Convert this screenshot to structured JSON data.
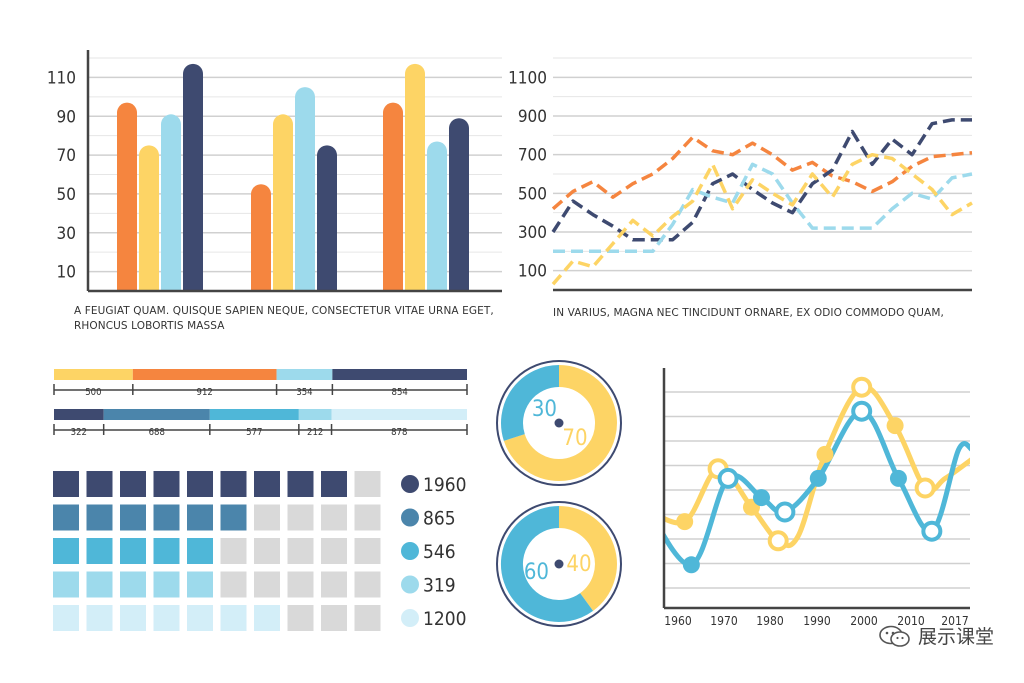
{
  "colors": {
    "orange": "#F5853F",
    "yellow": "#FDD465",
    "lightblue": "#9DDAEC",
    "navy": "#3E4A70",
    "teal": "#4FB7D8",
    "steel": "#4B85AB",
    "grid": "#D0D0D0",
    "axis": "#444444"
  },
  "bar_caption": "A FEUGIAT QUAM. QUISQUE SAPIEN NEQUE, CONSECTETUR VITAE URNA EGET, RHONCUS LOBORTIS MASSA",
  "line_caption": "IN VARIUS, MAGNA NEC TINCIDUNT ORNARE, EX ODIO COMMODO QUAM,",
  "watermark": "展示课堂",
  "chart_data": [
    {
      "type": "bar",
      "yticks": [
        "10",
        "30",
        "50",
        "70",
        "90",
        "110"
      ],
      "ylim": [
        0,
        120
      ],
      "groups": 3,
      "series": [
        {
          "color": "orange",
          "values": [
            97,
            55,
            97
          ]
        },
        {
          "color": "yellow",
          "values": [
            75,
            91,
            117
          ]
        },
        {
          "color": "lightblue",
          "values": [
            91,
            105,
            77
          ]
        },
        {
          "color": "navy",
          "values": [
            117,
            75,
            89
          ]
        }
      ]
    },
    {
      "type": "line",
      "style": "dashed",
      "yticks": [
        "100",
        "300",
        "500",
        "700",
        "900",
        "1100"
      ],
      "ylim": [
        0,
        1200
      ],
      "x": [
        0,
        1,
        2,
        3,
        4,
        5,
        6,
        7,
        8,
        9,
        10,
        11,
        12,
        13,
        14,
        15,
        16,
        17,
        18,
        19,
        20,
        21
      ],
      "series": [
        {
          "color": "orange",
          "values": [
            420,
            510,
            560,
            480,
            550,
            600,
            680,
            790,
            720,
            700,
            760,
            700,
            620,
            660,
            590,
            560,
            510,
            560,
            640,
            690,
            700,
            710
          ]
        },
        {
          "color": "navy",
          "values": [
            300,
            460,
            390,
            330,
            260,
            260,
            260,
            350,
            550,
            600,
            520,
            450,
            400,
            550,
            620,
            820,
            650,
            780,
            700,
            860,
            880,
            880
          ]
        },
        {
          "color": "lightblue",
          "values": [
            200,
            200,
            200,
            200,
            200,
            200,
            340,
            520,
            480,
            450,
            650,
            600,
            450,
            320,
            320,
            320,
            320,
            420,
            500,
            470,
            580,
            600
          ]
        },
        {
          "color": "yellow",
          "values": [
            30,
            150,
            120,
            240,
            360,
            280,
            380,
            460,
            650,
            420,
            570,
            500,
            440,
            600,
            480,
            650,
            700,
            680,
            600,
            520,
            390,
            450
          ]
        }
      ]
    },
    {
      "type": "stacked-bar",
      "rows": [
        {
          "segments": [
            {
              "color": "yellow",
              "value": 500,
              "label": "500"
            },
            {
              "color": "orange",
              "value": 912,
              "label": "912"
            },
            {
              "color": "lightblue",
              "value": 354,
              "label": "354"
            },
            {
              "color": "navy",
              "value": 854,
              "label": "854"
            }
          ]
        },
        {
          "segments": [
            {
              "color": "navy",
              "value": 322,
              "label": "322"
            },
            {
              "color": "steel",
              "value": 688,
              "label": "688"
            },
            {
              "color": "teal",
              "value": 577,
              "label": "577"
            },
            {
              "color": "lightblue",
              "value": 212,
              "label": "212"
            },
            {
              "color": "pale",
              "value": 878,
              "label": "878"
            }
          ]
        }
      ]
    },
    {
      "type": "waffle",
      "columns": 10,
      "rows": [
        {
          "color": "#3E4A70",
          "filled": 9,
          "label": "1960"
        },
        {
          "color": "#4B85AB",
          "filled": 6,
          "label": "865"
        },
        {
          "color": "#4FB7D8",
          "filled": 5,
          "label": "546"
        },
        {
          "color": "#9DDAEC",
          "filled": 5,
          "label": "319"
        },
        {
          "color": "#D3EEF8",
          "filled": 7,
          "label": "1200"
        }
      ]
    },
    {
      "type": "pie",
      "donuts": [
        {
          "slices": [
            {
              "color": "yellow",
              "value": 70,
              "label": "70"
            },
            {
              "color": "teal",
              "value": 30,
              "label": "30"
            }
          ]
        },
        {
          "slices": [
            {
              "color": "yellow",
              "value": 40,
              "label": "40"
            },
            {
              "color": "teal",
              "value": 60,
              "label": "60"
            }
          ]
        }
      ]
    },
    {
      "type": "line",
      "style": "smooth",
      "x": [
        "1960",
        "1970",
        "1980",
        "1990",
        "2000",
        "2010",
        "2017"
      ],
      "series": [
        {
          "color": "teal",
          "points": [
            [
              -1,
              2.2
            ],
            [
              0.4,
              0.9
            ],
            [
              1.5,
              2.7
            ],
            [
              2.5,
              2.3
            ],
            [
              3.2,
              2.0
            ],
            [
              4.2,
              2.7
            ],
            [
              5.5,
              4.1
            ],
            [
              6.6,
              2.7
            ],
            [
              7.6,
              1.6
            ],
            [
              8.4,
              3.3
            ],
            [
              8.8,
              3.3
            ]
          ],
          "markers": [
            1,
            2,
            3,
            4,
            5,
            6,
            7,
            8
          ]
        },
        {
          "color": "yellow",
          "points": [
            [
              -1,
              2.1
            ],
            [
              0.2,
              1.8
            ],
            [
              1.2,
              2.9
            ],
            [
              2.2,
              2.1
            ],
            [
              3.0,
              1.4
            ],
            [
              3.6,
              1.5
            ],
            [
              4.4,
              3.2
            ],
            [
              5.5,
              4.6
            ],
            [
              6.5,
              3.8
            ],
            [
              7.4,
              2.5
            ],
            [
              8.0,
              2.7
            ],
            [
              8.8,
              3.1
            ]
          ],
          "markers": [
            1,
            2,
            3,
            4,
            6,
            7,
            8,
            9
          ]
        }
      ]
    }
  ]
}
